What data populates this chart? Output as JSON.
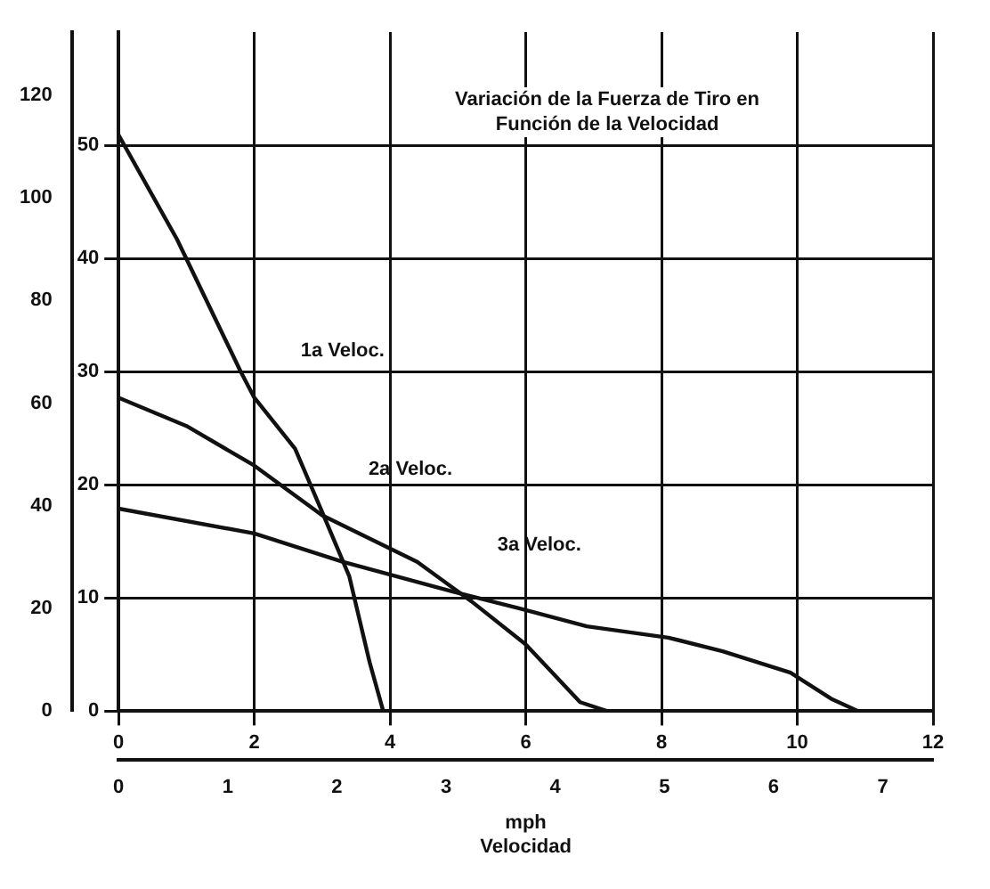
{
  "chart_data": {
    "type": "line",
    "title": "Variación de la Fuerza de Tiro en Función de la Velocidad",
    "xlabel": "Velocidad",
    "x2label": "mph",
    "legend": false,
    "grid": true,
    "marker": "none",
    "line_style": "solid",
    "xlim": [
      0,
      12
    ],
    "xticks": [
      0,
      2,
      4,
      6,
      8,
      10,
      12
    ],
    "x2lim": [
      0,
      7.46
    ],
    "x2ticks": [
      0,
      1,
      2,
      3,
      4,
      5,
      6,
      7
    ],
    "ylim": [
      0,
      60
    ],
    "yticks": [
      0,
      10,
      20,
      30,
      40,
      50
    ],
    "y2lim": [
      0,
      132.3
    ],
    "y2ticks": [
      0,
      20,
      40,
      60,
      80,
      100,
      120
    ],
    "series": [
      {
        "name": "1a Veloc.",
        "color": "#111111",
        "x": [
          0,
          0.86,
          1.8,
          2.0,
          2.6,
          3.0,
          3.4,
          3.7,
          3.9
        ],
        "values": [
          50.9,
          41.7,
          30,
          27.7,
          23.2,
          17.6,
          11.9,
          4.3,
          0
        ]
      },
      {
        "name": "2a Veloc.",
        "color": "#111111",
        "x": [
          0,
          1.0,
          2.0,
          3.0,
          4.4,
          5.2,
          6.0,
          6.8,
          7.2
        ],
        "values": [
          27.7,
          25.2,
          21.7,
          17.3,
          13.2,
          9.7,
          5.9,
          0.8,
          0
        ]
      },
      {
        "name": "3a Veloc.",
        "color": "#111111",
        "x": [
          0,
          2.0,
          3.3,
          4.9,
          5.9,
          6.9,
          8.1,
          8.9,
          9.9,
          10.5,
          10.9
        ],
        "values": [
          17.9,
          15.7,
          13.2,
          10.6,
          9.1,
          7.5,
          6.5,
          5.3,
          3.4,
          1.1,
          0
        ]
      }
    ]
  }
}
